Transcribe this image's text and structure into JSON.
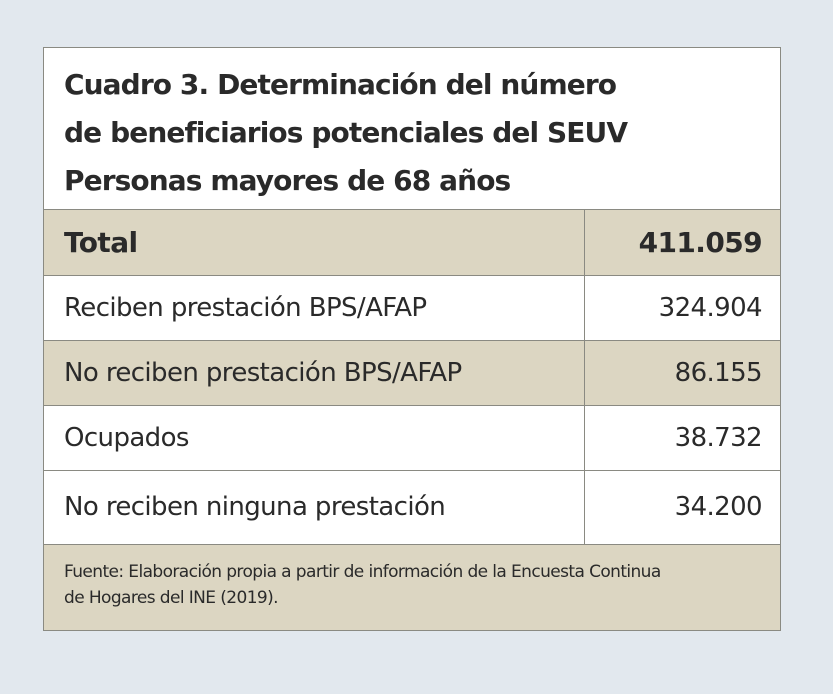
{
  "title": {
    "lines": [
      "Cuadro 3. Determinación del número",
      "de beneficiarios potenciales del SEUV",
      "Personas mayores de 68 años"
    ]
  },
  "table": {
    "total": {
      "label": "Total",
      "value": "411.059"
    },
    "rows": [
      {
        "label": "Reciben prestación BPS/AFAP",
        "value": "324.904"
      },
      {
        "label": "No reciben prestación BPS/AFAP",
        "value": "86.155"
      },
      {
        "label": "Ocupados",
        "value": "38.732"
      },
      {
        "label": "No reciben ninguna prestación",
        "value": "34.200"
      }
    ]
  },
  "footer": {
    "lines": [
      "Fuente: Elaboración propia a partir de información de la Encuesta Continua",
      "de Hogares del INE (2019)."
    ]
  },
  "colors": {
    "page_background": "#e2e8ee",
    "shaded_row": "#dcd6c2",
    "border": "#8a8a82",
    "text": "#2a2a2a"
  }
}
